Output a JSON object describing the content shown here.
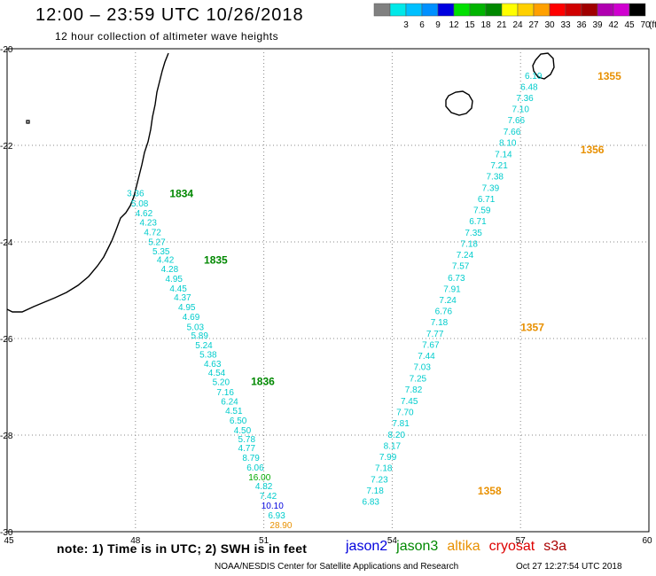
{
  "header": {
    "title": "12:00 – 23:59 UTC 10/26/2018",
    "subtitle": "12 hour collection of altimeter wave heights"
  },
  "legend": {
    "unit_label": "(ft)",
    "bins": [
      {
        "label": "",
        "color": "#808080"
      },
      {
        "label": "3",
        "color": "#00e8e8"
      },
      {
        "label": "6",
        "color": "#00c0ff"
      },
      {
        "label": "9",
        "color": "#0090ff"
      },
      {
        "label": "12",
        "color": "#0000e0"
      },
      {
        "label": "15",
        "color": "#00e000"
      },
      {
        "label": "18",
        "color": "#00b400"
      },
      {
        "label": "21",
        "color": "#008800"
      },
      {
        "label": "24",
        "color": "#ffff00"
      },
      {
        "label": "27",
        "color": "#ffd000"
      },
      {
        "label": "30",
        "color": "#ffa000"
      },
      {
        "label": "33",
        "color": "#ff0000"
      },
      {
        "label": "36",
        "color": "#d00000"
      },
      {
        "label": "39",
        "color": "#a00000"
      },
      {
        "label": "42",
        "color": "#b000b0"
      },
      {
        "label": "45",
        "color": "#d000d0"
      },
      {
        "label": "70",
        "color": "#000000"
      }
    ]
  },
  "axes": {
    "lon_ticks": [
      "45",
      "48",
      "51",
      "54",
      "57",
      "60"
    ],
    "lat_ticks": [
      "-20",
      "-22",
      "-24",
      "-26",
      "-28",
      "-30"
    ],
    "lon_range": [
      45,
      60
    ],
    "lat_range": [
      -30,
      -20
    ]
  },
  "colors": {
    "cyan": "#00cccc",
    "green": "#008800",
    "orange": "#e89000",
    "blue": "#0000dd",
    "grid": "#888888",
    "coast": "#000000"
  },
  "tracks": [
    {
      "name": "jason3-west",
      "labels": [
        {
          "text": "1834",
          "lon": 48.8,
          "lat": -22.98
        },
        {
          "text": "1835",
          "lon": 49.6,
          "lat": -24.36
        },
        {
          "text": "1836",
          "lon": 50.7,
          "lat": -26.87
        }
      ],
      "label_color": "#008800",
      "points": [
        {
          "lon": 48.0,
          "lat": -22.98,
          "v": "3.36",
          "c": "#00cccc"
        },
        {
          "lon": 48.1,
          "lat": -23.19,
          "v": "5.08",
          "c": "#00cccc"
        },
        {
          "lon": 48.2,
          "lat": -23.39,
          "v": "4.62",
          "c": "#00cccc"
        },
        {
          "lon": 48.3,
          "lat": -23.59,
          "v": "4.23",
          "c": "#00cccc"
        },
        {
          "lon": 48.4,
          "lat": -23.79,
          "v": "4.72",
          "c": "#00cccc"
        },
        {
          "lon": 48.5,
          "lat": -23.99,
          "v": "5.27",
          "c": "#00cccc"
        },
        {
          "lon": 48.6,
          "lat": -24.18,
          "v": "5.35",
          "c": "#00cccc"
        },
        {
          "lon": 48.7,
          "lat": -24.36,
          "v": "4.42",
          "c": "#00cccc"
        },
        {
          "lon": 48.8,
          "lat": -24.55,
          "v": "4.28",
          "c": "#00cccc"
        },
        {
          "lon": 48.9,
          "lat": -24.75,
          "v": "4.95",
          "c": "#00cccc"
        },
        {
          "lon": 49.0,
          "lat": -24.95,
          "v": "4.45",
          "c": "#00cccc"
        },
        {
          "lon": 49.1,
          "lat": -25.14,
          "v": "4.37",
          "c": "#00cccc"
        },
        {
          "lon": 49.2,
          "lat": -25.34,
          "v": "4.95",
          "c": "#00cccc"
        },
        {
          "lon": 49.3,
          "lat": -25.54,
          "v": "4.69",
          "c": "#00cccc"
        },
        {
          "lon": 49.4,
          "lat": -25.75,
          "v": "5.03",
          "c": "#00cccc"
        },
        {
          "lon": 49.5,
          "lat": -25.93,
          "v": "5.89",
          "c": "#00cccc"
        },
        {
          "lon": 49.6,
          "lat": -26.13,
          "v": "5.24",
          "c": "#00cccc"
        },
        {
          "lon": 49.7,
          "lat": -26.32,
          "v": "5.38",
          "c": "#00cccc"
        },
        {
          "lon": 49.8,
          "lat": -26.51,
          "v": "4.63",
          "c": "#00cccc"
        },
        {
          "lon": 49.9,
          "lat": -26.7,
          "v": "4.54",
          "c": "#00cccc"
        },
        {
          "lon": 50.0,
          "lat": -26.89,
          "v": "5.20",
          "c": "#00cccc"
        },
        {
          "lon": 50.1,
          "lat": -27.1,
          "v": "7.16",
          "c": "#00cccc"
        },
        {
          "lon": 50.2,
          "lat": -27.29,
          "v": "6.24",
          "c": "#00cccc"
        },
        {
          "lon": 50.3,
          "lat": -27.49,
          "v": "4.51",
          "c": "#00cccc"
        },
        {
          "lon": 50.4,
          "lat": -27.69,
          "v": "6.50",
          "c": "#00cccc"
        },
        {
          "lon": 50.5,
          "lat": -27.89,
          "v": "4.50",
          "c": "#00cccc"
        },
        {
          "lon": 50.6,
          "lat": -28.07,
          "v": "5.78",
          "c": "#00cccc"
        },
        {
          "lon": 50.6,
          "lat": -28.26,
          "v": "4.77",
          "c": "#00cccc"
        },
        {
          "lon": 50.7,
          "lat": -28.46,
          "v": "8.79",
          "c": "#00cccc"
        },
        {
          "lon": 50.8,
          "lat": -28.66,
          "v": "6.06",
          "c": "#00cccc"
        },
        {
          "lon": 50.9,
          "lat": -28.86,
          "v": "16.00",
          "c": "#00aa00"
        },
        {
          "lon": 51.0,
          "lat": -29.05,
          "v": "4.82",
          "c": "#00cccc"
        },
        {
          "lon": 51.1,
          "lat": -29.25,
          "v": "7.42",
          "c": "#00cccc"
        },
        {
          "lon": 51.2,
          "lat": -29.45,
          "v": "10.10",
          "c": "#0000dd"
        },
        {
          "lon": 51.3,
          "lat": -29.65,
          "v": "6.93",
          "c": "#00cccc"
        },
        {
          "lon": 51.4,
          "lat": -29.85,
          "v": "28.90",
          "c": "#e89000"
        }
      ]
    },
    {
      "name": "altika-east",
      "labels": [
        {
          "text": "1355",
          "lon": 58.8,
          "lat": -20.55
        },
        {
          "text": "1356",
          "lon": 58.4,
          "lat": -22.07
        },
        {
          "text": "1357",
          "lon": 57.0,
          "lat": -25.75
        },
        {
          "text": "1358",
          "lon": 56.0,
          "lat": -29.14
        }
      ],
      "label_color": "#e89000",
      "points": [
        {
          "lon": 57.3,
          "lat": -20.55,
          "v": "6.19",
          "c": "#00cccc"
        },
        {
          "lon": 57.2,
          "lat": -20.78,
          "v": "6.48",
          "c": "#00cccc"
        },
        {
          "lon": 57.1,
          "lat": -21.01,
          "v": "7.36",
          "c": "#00cccc"
        },
        {
          "lon": 57.0,
          "lat": -21.24,
          "v": "7.10",
          "c": "#00cccc"
        },
        {
          "lon": 56.9,
          "lat": -21.47,
          "v": "7.66",
          "c": "#00cccc"
        },
        {
          "lon": 56.8,
          "lat": -21.71,
          "v": "7.66",
          "c": "#00cccc"
        },
        {
          "lon": 56.7,
          "lat": -21.94,
          "v": "8.10",
          "c": "#00cccc"
        },
        {
          "lon": 56.6,
          "lat": -22.17,
          "v": "7.14",
          "c": "#00cccc"
        },
        {
          "lon": 56.5,
          "lat": -22.4,
          "v": "7.21",
          "c": "#00cccc"
        },
        {
          "lon": 56.4,
          "lat": -22.63,
          "v": "7.38",
          "c": "#00cccc"
        },
        {
          "lon": 56.3,
          "lat": -22.87,
          "v": "7.39",
          "c": "#00cccc"
        },
        {
          "lon": 56.2,
          "lat": -23.1,
          "v": "6.71",
          "c": "#00cccc"
        },
        {
          "lon": 56.1,
          "lat": -23.33,
          "v": "7.59",
          "c": "#00cccc"
        },
        {
          "lon": 56.0,
          "lat": -23.56,
          "v": "6.71",
          "c": "#00cccc"
        },
        {
          "lon": 55.9,
          "lat": -23.8,
          "v": "7.35",
          "c": "#00cccc"
        },
        {
          "lon": 55.8,
          "lat": -24.03,
          "v": "7.18",
          "c": "#00cccc"
        },
        {
          "lon": 55.7,
          "lat": -24.26,
          "v": "7.24",
          "c": "#00cccc"
        },
        {
          "lon": 55.6,
          "lat": -24.49,
          "v": "7.57",
          "c": "#00cccc"
        },
        {
          "lon": 55.5,
          "lat": -24.73,
          "v": "6.73",
          "c": "#00cccc"
        },
        {
          "lon": 55.4,
          "lat": -24.96,
          "v": "7.91",
          "c": "#00cccc"
        },
        {
          "lon": 55.3,
          "lat": -25.19,
          "v": "7.24",
          "c": "#00cccc"
        },
        {
          "lon": 55.2,
          "lat": -25.42,
          "v": "6.76",
          "c": "#00cccc"
        },
        {
          "lon": 55.1,
          "lat": -25.65,
          "v": "7.18",
          "c": "#00cccc"
        },
        {
          "lon": 55.0,
          "lat": -25.89,
          "v": "7.77",
          "c": "#00cccc"
        },
        {
          "lon": 54.9,
          "lat": -26.12,
          "v": "7.67",
          "c": "#00cccc"
        },
        {
          "lon": 54.8,
          "lat": -26.35,
          "v": "7.44",
          "c": "#00cccc"
        },
        {
          "lon": 54.7,
          "lat": -26.58,
          "v": "7.03",
          "c": "#00cccc"
        },
        {
          "lon": 54.6,
          "lat": -26.82,
          "v": "7.25",
          "c": "#00cccc"
        },
        {
          "lon": 54.5,
          "lat": -27.05,
          "v": "7.82",
          "c": "#00cccc"
        },
        {
          "lon": 54.4,
          "lat": -27.28,
          "v": "7.45",
          "c": "#00cccc"
        },
        {
          "lon": 54.3,
          "lat": -27.51,
          "v": "7.70",
          "c": "#00cccc"
        },
        {
          "lon": 54.2,
          "lat": -27.74,
          "v": "7.81",
          "c": "#00cccc"
        },
        {
          "lon": 54.1,
          "lat": -27.98,
          "v": "8.20",
          "c": "#00cccc"
        },
        {
          "lon": 54.0,
          "lat": -28.21,
          "v": "8.17",
          "c": "#00cccc"
        },
        {
          "lon": 53.9,
          "lat": -28.44,
          "v": "7.99",
          "c": "#00cccc"
        },
        {
          "lon": 53.8,
          "lat": -28.67,
          "v": "7.18",
          "c": "#00cccc"
        },
        {
          "lon": 53.7,
          "lat": -28.91,
          "v": "7.23",
          "c": "#00cccc"
        },
        {
          "lon": 53.6,
          "lat": -29.14,
          "v": "7.18",
          "c": "#00cccc"
        },
        {
          "lon": 53.5,
          "lat": -29.37,
          "v": "6.83",
          "c": "#00cccc"
        }
      ]
    }
  ],
  "footer": {
    "note": "note: 1) Time is in UTC; 2) SWH is in feet",
    "satellites": [
      {
        "name": "jason2",
        "color": "#0000dd"
      },
      {
        "name": "jason3",
        "color": "#008800"
      },
      {
        "name": "altika",
        "color": "#e89000"
      },
      {
        "name": "cryosat",
        "color": "#dd0000"
      },
      {
        "name": "s3a",
        "color": "#aa0000"
      }
    ],
    "credit": "NOAA/NESDIS Center for Satellite Applications and Research",
    "timestamp": "Oct 27 12:27:54 UTC 2018"
  }
}
